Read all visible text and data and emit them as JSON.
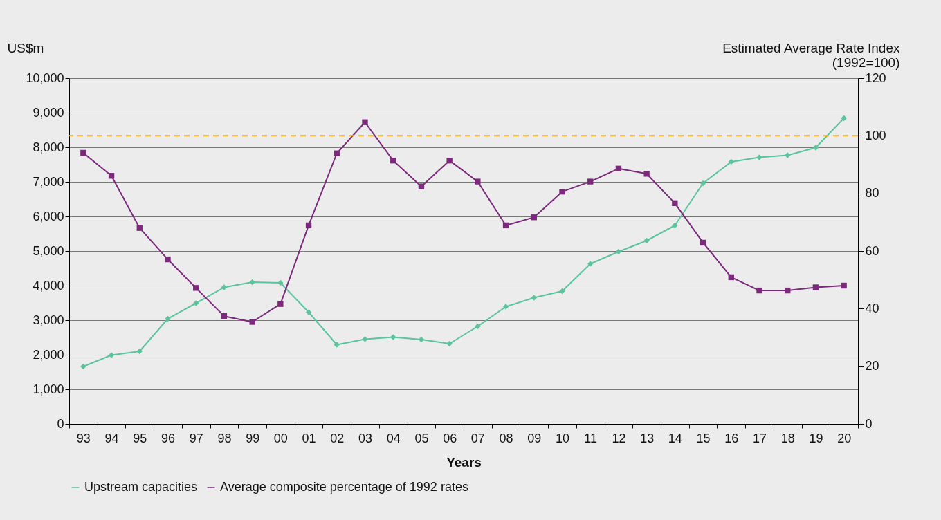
{
  "chart_data": {
    "type": "line",
    "xlabel": "Years",
    "ylabel": "US$m",
    "y2label": "Estimated Average Rate Index\n(1992=100)",
    "categories": [
      "93",
      "94",
      "95",
      "96",
      "97",
      "98",
      "99",
      "00",
      "01",
      "02",
      "03",
      "04",
      "05",
      "06",
      "07",
      "08",
      "09",
      "10",
      "11",
      "12",
      "13",
      "14",
      "15",
      "16",
      "17",
      "18",
      "19",
      "20"
    ],
    "series": [
      {
        "name": "Upstream capacities",
        "color": "#5cc49c",
        "marker": "diamond",
        "values": [
          1660,
          1990,
          2100,
          3040,
          3490,
          3950,
          4100,
          4080,
          3230,
          2290,
          2450,
          2510,
          2440,
          2320,
          2820,
          3390,
          3650,
          3840,
          4630,
          4980,
          5300,
          5740,
          6960,
          7580,
          7710,
          7770,
          7990,
          8840
        ]
      },
      {
        "name": "Average composite percentage of 1992 rates",
        "color": "#7b2a7b",
        "marker": "square",
        "axis": "y2",
        "values": [
          94.1,
          86.1,
          68.0,
          57.1,
          47.2,
          37.4,
          35.4,
          41.6,
          68.9,
          93.9,
          104.7,
          91.4,
          82.4,
          91.4,
          84.1,
          68.9,
          71.7,
          80.6,
          84.1,
          88.6,
          86.8,
          76.6,
          62.9,
          50.9,
          46.3,
          46.3,
          47.4,
          48.0
        ]
      }
    ],
    "ylim": [
      0,
      10000
    ],
    "yticks": [
      {
        "value": 0,
        "label": "0"
      },
      {
        "value": 1000,
        "label": "1,000"
      },
      {
        "value": 2000,
        "label": "2,000"
      },
      {
        "value": 3000,
        "label": "3,000"
      },
      {
        "value": 4000,
        "label": "4,000"
      },
      {
        "value": 5000,
        "label": "5,000"
      },
      {
        "value": 6000,
        "label": "6,000"
      },
      {
        "value": 7000,
        "label": "7,000"
      },
      {
        "value": 8000,
        "label": "8,000"
      },
      {
        "value": 9000,
        "label": "9,000"
      },
      {
        "value": 10000,
        "label": "10,000"
      }
    ],
    "y2lim": [
      0,
      120
    ],
    "y2ticks": [
      0,
      20,
      40,
      60,
      80,
      100,
      120
    ],
    "ref_lines": [
      {
        "axis": "y2",
        "value": 100,
        "color": "#f0b323",
        "line_style": "dashed"
      }
    ],
    "grid": "y",
    "legend": "bottom"
  }
}
